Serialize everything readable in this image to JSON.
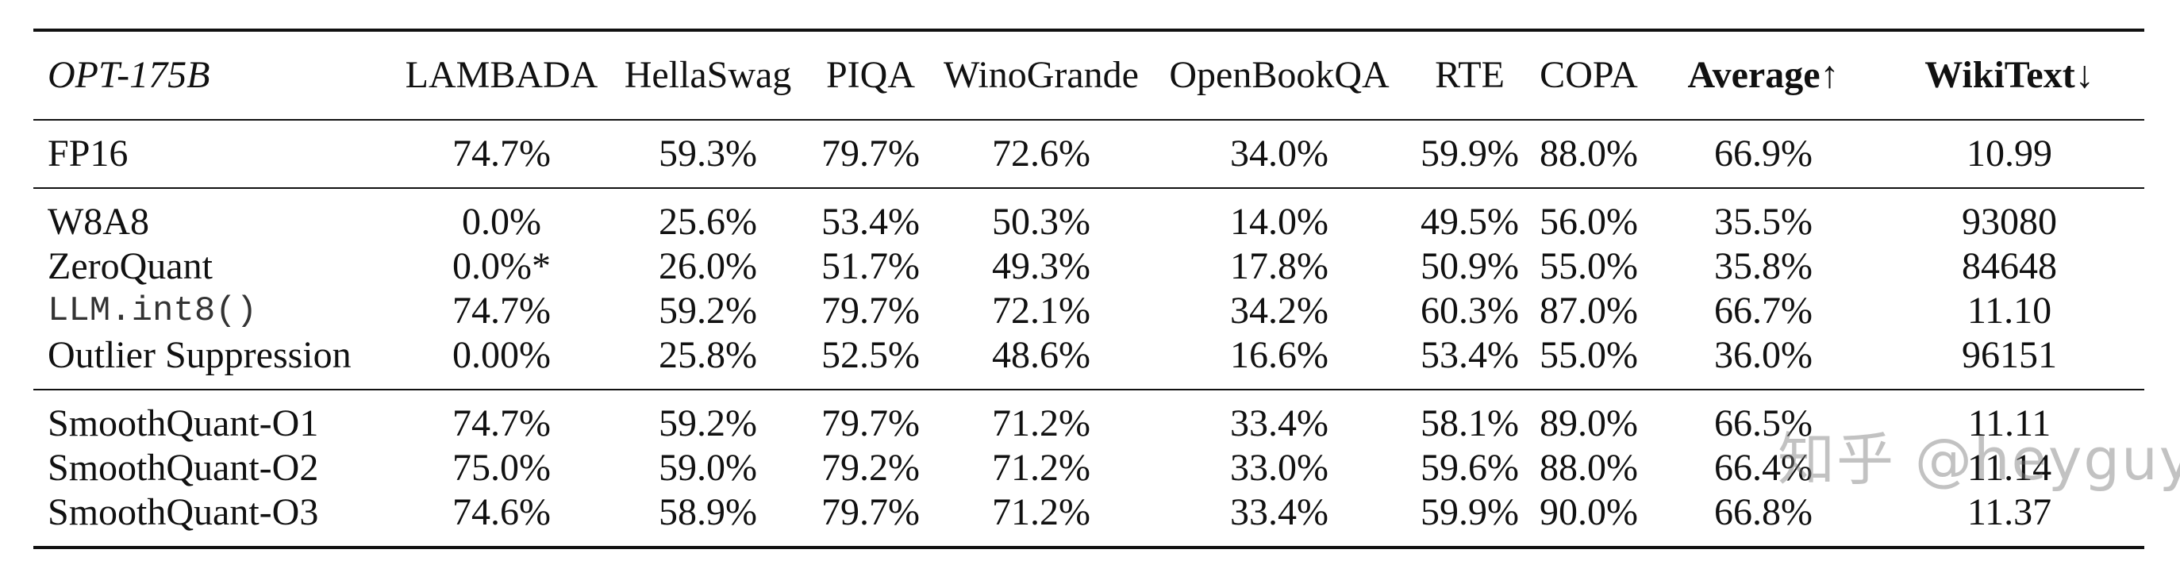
{
  "table": {
    "header": [
      "OPT-175B",
      "LAMBADA",
      "HellaSwag",
      "PIQA",
      "WinoGrande",
      "OpenBookQA",
      "RTE",
      "COPA",
      "Average↑",
      "WikiText↓"
    ],
    "fp16": {
      "name": "FP16",
      "cells": [
        "74.7%",
        "59.3%",
        "79.7%",
        "72.6%",
        "34.0%",
        "59.9%",
        "88.0%",
        "66.9%",
        "10.99"
      ]
    },
    "baselines": [
      {
        "name": "W8A8",
        "cells": [
          "0.0%",
          "25.6%",
          "53.4%",
          "50.3%",
          "14.0%",
          "49.5%",
          "56.0%",
          "35.5%",
          "93080"
        ]
      },
      {
        "name": "ZeroQuant",
        "cells": [
          "0.0%*",
          "26.0%",
          "51.7%",
          "49.3%",
          "17.8%",
          "50.9%",
          "55.0%",
          "35.8%",
          "84648"
        ]
      },
      {
        "name": "LLM.int8()",
        "cells": [
          "74.7%",
          "59.2%",
          "79.7%",
          "72.1%",
          "34.2%",
          "60.3%",
          "87.0%",
          "66.7%",
          "11.10"
        ]
      },
      {
        "name": "Outlier Suppression",
        "cells": [
          "0.00%",
          "25.8%",
          "52.5%",
          "48.6%",
          "16.6%",
          "53.4%",
          "55.0%",
          "36.0%",
          "96151"
        ]
      }
    ],
    "smoothquant": [
      {
        "name": "SmoothQuant-O1",
        "cells": [
          "74.7%",
          "59.2%",
          "79.7%",
          "71.2%",
          "33.4%",
          "58.1%",
          "89.0%",
          "66.5%",
          "11.11"
        ]
      },
      {
        "name": "SmoothQuant-O2",
        "cells": [
          "75.0%",
          "59.0%",
          "79.2%",
          "71.2%",
          "33.0%",
          "59.6%",
          "88.0%",
          "66.4%",
          "11.14"
        ]
      },
      {
        "name": "SmoothQuant-O3",
        "cells": [
          "74.6%",
          "58.9%",
          "79.7%",
          "71.2%",
          "33.4%",
          "59.9%",
          "90.0%",
          "66.8%",
          "11.37"
        ]
      }
    ]
  },
  "watermark": "知乎 @heyguy"
}
